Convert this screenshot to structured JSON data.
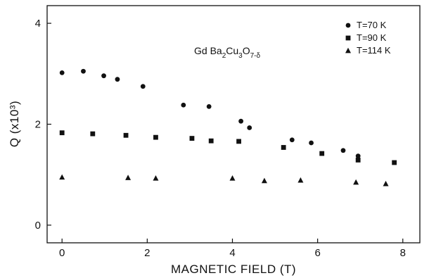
{
  "chart_data": {
    "type": "scatter",
    "title": "",
    "xlabel": "MAGNETIC FIELD (T)",
    "ylabel": "Q (x10³)",
    "xlim": [
      -0.35,
      8.4
    ],
    "ylim": [
      -0.35,
      4.35
    ],
    "x_ticks": [
      0,
      2,
      4,
      6,
      8
    ],
    "y_ticks": [
      0,
      2,
      4
    ],
    "grid": false,
    "legend_position": "top-right",
    "annotation": "Gd Ba2Cu3O7-δ",
    "series": [
      {
        "name": "T=70 K",
        "marker": "circle",
        "points": [
          [
            0.0,
            3.02
          ],
          [
            0.5,
            3.05
          ],
          [
            0.98,
            2.96
          ],
          [
            1.3,
            2.89
          ],
          [
            1.9,
            2.75
          ],
          [
            2.85,
            2.38
          ],
          [
            3.45,
            2.35
          ],
          [
            4.2,
            2.06
          ],
          [
            4.4,
            1.93
          ],
          [
            5.4,
            1.69
          ],
          [
            5.85,
            1.63
          ],
          [
            6.6,
            1.48
          ],
          [
            6.95,
            1.37
          ]
        ]
      },
      {
        "name": "T=90 K",
        "marker": "square",
        "points": [
          [
            0.0,
            1.83
          ],
          [
            0.72,
            1.81
          ],
          [
            1.5,
            1.78
          ],
          [
            2.2,
            1.74
          ],
          [
            3.05,
            1.72
          ],
          [
            3.5,
            1.67
          ],
          [
            4.15,
            1.66
          ],
          [
            5.2,
            1.54
          ],
          [
            6.1,
            1.42
          ],
          [
            6.95,
            1.29
          ],
          [
            7.8,
            1.24
          ]
        ]
      },
      {
        "name": "T=114 K",
        "marker": "triangle",
        "points": [
          [
            0.0,
            0.95
          ],
          [
            1.55,
            0.94
          ],
          [
            2.2,
            0.93
          ],
          [
            4.0,
            0.93
          ],
          [
            4.75,
            0.88
          ],
          [
            5.6,
            0.89
          ],
          [
            6.9,
            0.85
          ],
          [
            7.6,
            0.82
          ]
        ]
      }
    ]
  }
}
